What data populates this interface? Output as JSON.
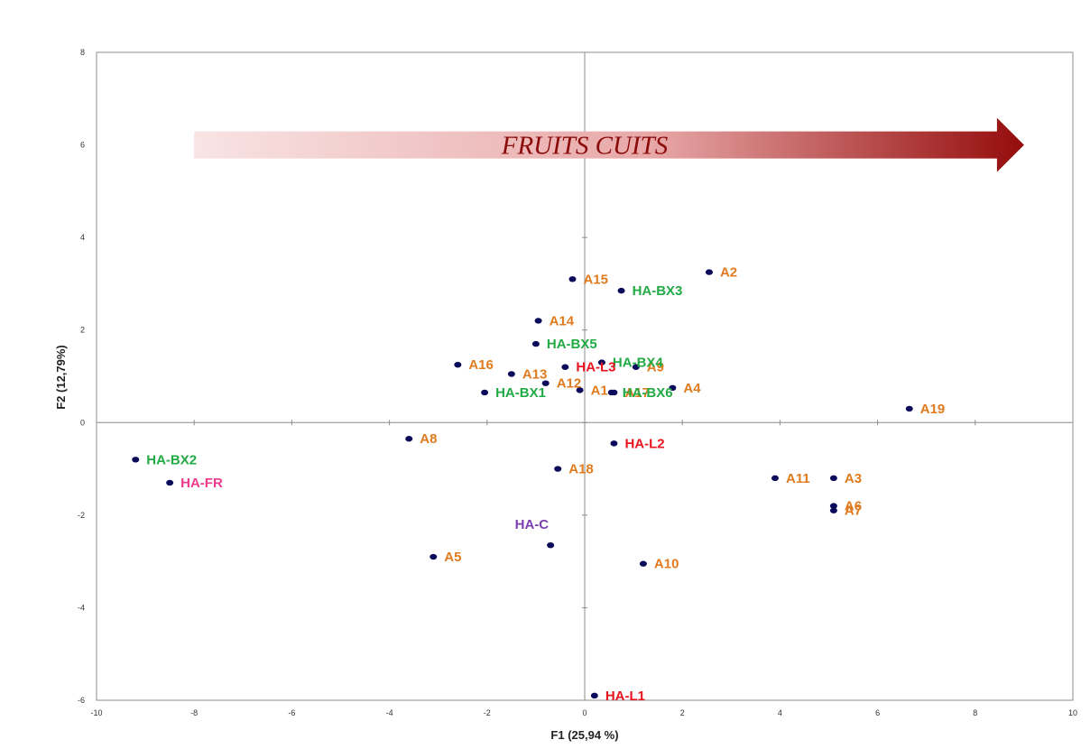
{
  "chart_data": {
    "type": "scatter",
    "xlabel": "F1 (25,94 %)",
    "ylabel": "F2 (12,79%)",
    "xlim": [
      -10,
      10
    ],
    "ylim": [
      -6,
      8
    ],
    "xticks": [
      "-10",
      "-8",
      "-6",
      "-4",
      "-2",
      "0",
      "2",
      "4",
      "6",
      "8",
      "10"
    ],
    "yticks": [
      "-6",
      "-4",
      "-2",
      "0",
      "2",
      "4",
      "6",
      "8"
    ],
    "grid": false,
    "annotation": {
      "text": "FRUITS CUITS",
      "type": "arrow",
      "x_from": -8,
      "x_to": 9,
      "y": 6
    },
    "colors": {
      "marker": "#0a0a5a",
      "A": "#e07b1f",
      "HA-BX": "#22aa44",
      "HA-L": "#e8141e",
      "HA-FR": "#ee3a8c",
      "HA-C": "#7b3fb0",
      "arrow": "#a01010"
    },
    "points": [
      {
        "label": "A1",
        "group": "A",
        "x": -0.1,
        "y": 0.7
      },
      {
        "label": "A2",
        "group": "A",
        "x": 2.55,
        "y": 3.25
      },
      {
        "label": "A3",
        "group": "A",
        "x": 5.1,
        "y": -1.2
      },
      {
        "label": "A4",
        "group": "A",
        "x": 1.8,
        "y": 0.75
      },
      {
        "label": "A5",
        "group": "A",
        "x": -3.1,
        "y": -2.9
      },
      {
        "label": "A6",
        "group": "A",
        "x": 5.1,
        "y": -1.8
      },
      {
        "label": "A7",
        "group": "A",
        "x": 5.1,
        "y": -1.9
      },
      {
        "label": "A8",
        "group": "A",
        "x": -3.6,
        "y": -0.35
      },
      {
        "label": "A9",
        "group": "A",
        "x": 1.05,
        "y": 1.2
      },
      {
        "label": "A10",
        "group": "A",
        "x": 1.2,
        "y": -3.05
      },
      {
        "label": "A11",
        "group": "A",
        "x": 3.9,
        "y": -1.2
      },
      {
        "label": "A12",
        "group": "A",
        "x": -0.8,
        "y": 0.85
      },
      {
        "label": "A13",
        "group": "A",
        "x": -1.5,
        "y": 1.05
      },
      {
        "label": "A14",
        "group": "A",
        "x": -0.95,
        "y": 2.2
      },
      {
        "label": "A15",
        "group": "A",
        "x": -0.25,
        "y": 3.1
      },
      {
        "label": "A16",
        "group": "A",
        "x": -2.6,
        "y": 1.25
      },
      {
        "label": "A17",
        "group": "A",
        "x": 0.6,
        "y": 0.65
      },
      {
        "label": "A18",
        "group": "A",
        "x": -0.55,
        "y": -1.0
      },
      {
        "label": "A19",
        "group": "A",
        "x": 6.65,
        "y": 0.3
      },
      {
        "label": "HA-BX1",
        "group": "HA-BX",
        "x": -2.05,
        "y": 0.65
      },
      {
        "label": "HA-BX2",
        "group": "HA-BX",
        "x": -9.2,
        "y": -0.8
      },
      {
        "label": "HA-BX3",
        "group": "HA-BX",
        "x": 0.75,
        "y": 2.85
      },
      {
        "label": "HA-BX4",
        "group": "HA-BX",
        "x": 0.35,
        "y": 1.3
      },
      {
        "label": "HA-BX5",
        "group": "HA-BX",
        "x": -1.0,
        "y": 1.7
      },
      {
        "label": "HA-BX6",
        "group": "HA-BX",
        "x": 0.55,
        "y": 0.65
      },
      {
        "label": "HA-L1",
        "group": "HA-L",
        "x": 0.2,
        "y": -5.9
      },
      {
        "label": "HA-L2",
        "group": "HA-L",
        "x": 0.6,
        "y": -0.45
      },
      {
        "label": "HA-L3",
        "group": "HA-L",
        "x": -0.4,
        "y": 1.2
      },
      {
        "label": "HA-FR",
        "group": "HA-FR",
        "x": -8.5,
        "y": -1.3
      },
      {
        "label": "HA-C",
        "group": "HA-C",
        "x": -0.7,
        "y": -2.65
      }
    ]
  }
}
